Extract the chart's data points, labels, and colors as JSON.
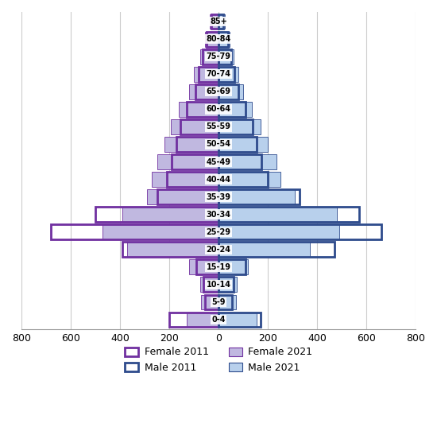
{
  "age_groups": [
    "0-4",
    "5-9",
    "10-14",
    "15-19",
    "20-24",
    "25-29",
    "30-34",
    "35-39",
    "40-44",
    "45-49",
    "50-54",
    "55-59",
    "60-64",
    "65-69",
    "70-74",
    "75-79",
    "80-84",
    "85+"
  ],
  "female_2021": [
    130,
    70,
    75,
    120,
    370,
    470,
    390,
    290,
    270,
    250,
    220,
    195,
    160,
    120,
    100,
    75,
    55,
    35
  ],
  "female_2011": [
    200,
    55,
    60,
    90,
    390,
    680,
    500,
    250,
    210,
    190,
    170,
    155,
    130,
    95,
    80,
    65,
    50,
    30
  ],
  "male_2021": [
    155,
    70,
    75,
    120,
    370,
    490,
    480,
    310,
    250,
    235,
    200,
    170,
    135,
    100,
    80,
    60,
    45,
    25
  ],
  "male_2011": [
    170,
    55,
    60,
    110,
    470,
    660,
    570,
    330,
    200,
    175,
    155,
    140,
    110,
    80,
    65,
    50,
    40,
    20
  ],
  "female_2011_facecolor": "none",
  "female_2011_edgecolor": "#7030a0",
  "female_2021_facecolor": "#c0b8e0",
  "female_2021_edgecolor": "#7030a0",
  "male_2011_facecolor": "none",
  "male_2011_edgecolor": "#2e4b8c",
  "male_2021_facecolor": "#b8d0ec",
  "male_2021_edgecolor": "#2e4b8c",
  "xlim": 800,
  "xticks": [
    -800,
    -600,
    -400,
    -200,
    0,
    200,
    400,
    600,
    800
  ],
  "xticklabels": [
    "800",
    "600",
    "400",
    "200",
    "0",
    "200",
    "400",
    "600",
    "800"
  ],
  "bar_height": 0.85,
  "lw_2011": 2.0,
  "lw_2021": 0.6,
  "background_color": "#ffffff",
  "grid_color": "#cccccc"
}
